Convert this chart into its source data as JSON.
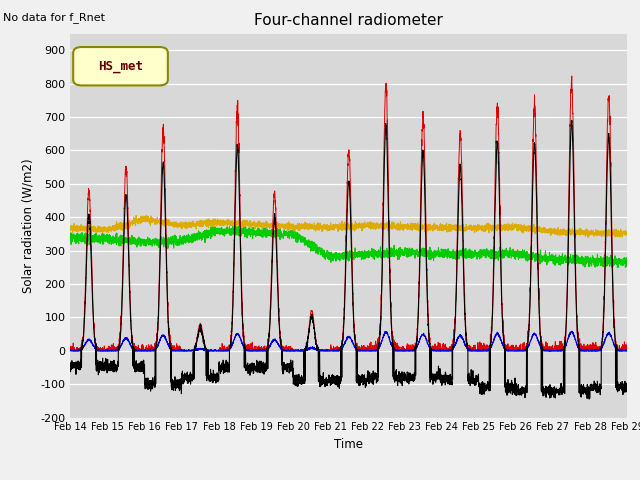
{
  "title": "Four-channel radiometer",
  "top_left_text": "No data for f_Rnet",
  "ylabel": "Solar radiation (W/m2)",
  "xlabel": "Time",
  "ylim": [
    -200,
    950
  ],
  "yticks": [
    -200,
    -100,
    0,
    100,
    200,
    300,
    400,
    500,
    600,
    700,
    800,
    900
  ],
  "xtick_labels": [
    "Feb 14",
    "Feb 15",
    "Feb 16",
    "Feb 17",
    "Feb 18",
    "Feb 19",
    "Feb 20",
    "Feb 21",
    "Feb 22",
    "Feb 23",
    "Feb 24",
    "Feb 25",
    "Feb 26",
    "Feb 27",
    "Feb 28",
    "Feb 29"
  ],
  "colors": {
    "SW_in": "#dd0000",
    "SW_out": "#0000dd",
    "LW_in": "#00cc00",
    "LW_out": "#ddaa00",
    "Rnet_4way": "#000000"
  },
  "axes_facecolor": "#d8d8d8",
  "fig_facecolor": "#f0f0f0",
  "legend_label": "HS_met",
  "legend_bg": "#ffffcc",
  "legend_border": "#888800",
  "sw_in_peaks": [
    480,
    550,
    660,
    80,
    720,
    470,
    120,
    600,
    795,
    700,
    650,
    735,
    730,
    810,
    760
  ],
  "lw_in_base": [
    340,
    335,
    325,
    330,
    360,
    355,
    350,
    280,
    290,
    295,
    290,
    290,
    290,
    275,
    268
  ],
  "lw_out_base": [
    368,
    362,
    395,
    375,
    385,
    378,
    372,
    370,
    375,
    372,
    368,
    368,
    370,
    358,
    352
  ],
  "rnet_night_vals": [
    -45,
    -50,
    -100,
    -80,
    -50,
    -50,
    -90,
    -90,
    -80,
    -80,
    -85,
    -110,
    -120,
    -120,
    -110
  ]
}
